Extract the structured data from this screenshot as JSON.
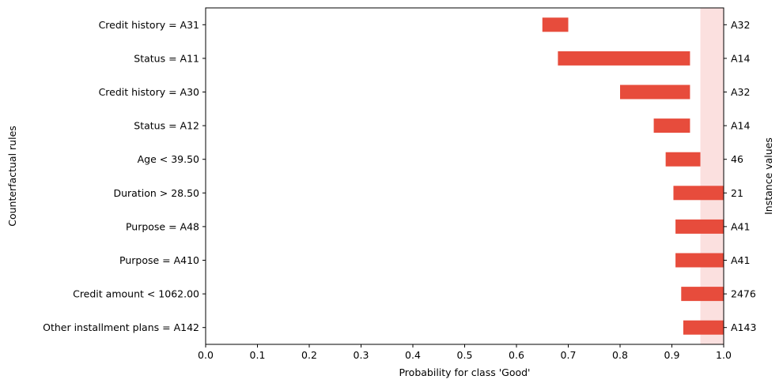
{
  "chart_data": {
    "type": "bar",
    "orientation": "horizontal",
    "xlabel": "Probability for class 'Good'",
    "ylabel": "Counterfactual rules",
    "ylabel_right": "Instance values",
    "xlim": [
      0.0,
      1.0
    ],
    "xticks": [
      "0.0",
      "0.1",
      "0.2",
      "0.3",
      "0.4",
      "0.5",
      "0.6",
      "0.7",
      "0.8",
      "0.9",
      "1.0"
    ],
    "bar_color": "#e74c3c",
    "band_color": "#fbe0df",
    "band_range": [
      0.955,
      1.0
    ],
    "bars": [
      {
        "rule": "Credit history = A31",
        "instance": "A32",
        "start": 0.65,
        "end": 0.7
      },
      {
        "rule": "Status = A11",
        "instance": "A14",
        "start": 0.68,
        "end": 0.935
      },
      {
        "rule": "Credit history = A30",
        "instance": "A32",
        "start": 0.8,
        "end": 0.935
      },
      {
        "rule": "Status = A12",
        "instance": "A14",
        "start": 0.865,
        "end": 0.935
      },
      {
        "rule": "Age < 39.50",
        "instance": "46",
        "start": 0.888,
        "end": 0.955
      },
      {
        "rule": "Duration > 28.50",
        "instance": "21",
        "start": 0.903,
        "end": 1.0
      },
      {
        "rule": "Purpose = A48",
        "instance": "A41",
        "start": 0.907,
        "end": 1.0
      },
      {
        "rule": "Purpose = A410",
        "instance": "A41",
        "start": 0.907,
        "end": 1.0
      },
      {
        "rule": "Credit amount < 1062.00",
        "instance": "2476",
        "start": 0.918,
        "end": 1.0
      },
      {
        "rule": "Other installment plans = A142",
        "instance": "A143",
        "start": 0.922,
        "end": 1.0
      }
    ]
  }
}
